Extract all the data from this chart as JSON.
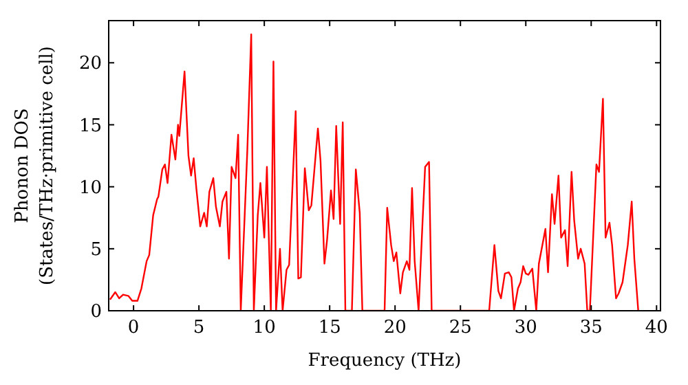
{
  "chart_data": {
    "type": "line",
    "xlabel": "Frequency (THz)",
    "ylabel": "Phonon DOS\n(States/THz·primitive cell)",
    "xlim": [
      -1.9,
      40.3
    ],
    "ylim": [
      0,
      23.4
    ],
    "xticks": [
      0,
      5,
      10,
      15,
      20,
      25,
      30,
      35,
      40
    ],
    "yticks": [
      0,
      5,
      10,
      15,
      20
    ],
    "grid": false,
    "marker": "none",
    "line_style": "solid",
    "series": [
      {
        "color": "#ff0000",
        "x": [
          -1.8,
          -1.4,
          -1.1,
          -0.8,
          -0.4,
          -0.1,
          0.3,
          0.6,
          1.0,
          1.2,
          1.5,
          1.8,
          1.9,
          2.2,
          2.4,
          2.6,
          2.9,
          3.2,
          3.4,
          3.5,
          3.9,
          4.2,
          4.4,
          4.6,
          4.8,
          5.1,
          5.4,
          5.6,
          5.8,
          6.1,
          6.3,
          6.6,
          6.8,
          7.1,
          7.3,
          7.5,
          7.8,
          8.0,
          8.2,
          8.5,
          8.7,
          9.0,
          9.2,
          9.5,
          9.7,
          10.0,
          10.2,
          10.5,
          10.7,
          10.9,
          11.2,
          11.4,
          11.7,
          11.9,
          12.4,
          12.6,
          12.8,
          13.1,
          13.4,
          13.6,
          14.1,
          14.3,
          14.6,
          14.8,
          15.1,
          15.3,
          15.5,
          15.8,
          16.0,
          16.2,
          16.7,
          17.0,
          17.3,
          17.5,
          19.2,
          19.4,
          19.7,
          19.9,
          20.1,
          20.4,
          20.6,
          20.9,
          21.1,
          21.3,
          21.5,
          21.8,
          22.1,
          22.3,
          22.6,
          22.8,
          27.2,
          27.6,
          27.9,
          28.1,
          28.4,
          28.7,
          28.9,
          29.1,
          29.4,
          29.6,
          29.8,
          30.0,
          30.2,
          30.5,
          30.8,
          31.0,
          31.5,
          31.7,
          32.0,
          32.2,
          32.5,
          32.7,
          33.0,
          33.2,
          33.5,
          33.7,
          34.0,
          34.2,
          34.5,
          34.7,
          34.9,
          35.4,
          35.6,
          35.9,
          36.1,
          36.4,
          36.6,
          36.9,
          37.1,
          37.4,
          37.8,
          38.1,
          38.3,
          38.6
        ],
        "values": [
          0.9,
          1.5,
          1.0,
          1.3,
          1.2,
          0.8,
          0.8,
          1.8,
          4.0,
          4.5,
          7.7,
          9.0,
          9.2,
          11.4,
          11.8,
          10.3,
          14.2,
          12.2,
          15.0,
          14.1,
          19.3,
          12.5,
          10.9,
          12.3,
          9.9,
          6.8,
          7.9,
          6.8,
          9.6,
          10.7,
          8.4,
          6.8,
          8.8,
          9.6,
          4.2,
          11.6,
          10.7,
          14.2,
          0,
          7.7,
          12.9,
          22.3,
          0,
          7.7,
          10.3,
          5.9,
          11.6,
          0,
          20.1,
          0,
          5.0,
          0,
          3.3,
          3.7,
          16.1,
          2.6,
          2.7,
          11.5,
          8.1,
          8.5,
          14.7,
          12.1,
          3.8,
          5.7,
          9.7,
          7.4,
          14.9,
          7.0,
          15.2,
          0,
          0,
          11.4,
          7.9,
          0,
          0,
          8.3,
          5.3,
          4.0,
          4.7,
          1.4,
          3.1,
          4.0,
          3.3,
          9.9,
          4.0,
          0,
          7.1,
          11.6,
          12.0,
          0,
          0,
          5.3,
          1.6,
          1.0,
          3.0,
          3.1,
          2.7,
          0,
          1.8,
          2.3,
          3.6,
          3.0,
          2.9,
          3.4,
          0,
          3.8,
          6.6,
          3.1,
          9.4,
          7.0,
          10.9,
          5.9,
          6.5,
          3.6,
          11.2,
          7.3,
          4.2,
          5.0,
          3.8,
          0,
          0,
          11.8,
          11.2,
          17.1,
          5.9,
          7.1,
          5.3,
          1.0,
          1.4,
          2.3,
          5.3,
          8.8,
          4.2,
          0
        ]
      }
    ]
  }
}
